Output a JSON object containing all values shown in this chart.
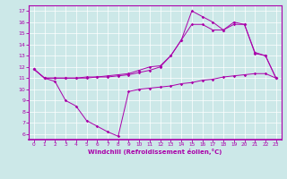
{
  "xlabel": "Windchill (Refroidissement éolien,°C)",
  "bg_color": "#cce8e8",
  "line_color": "#aa00aa",
  "xlim": [
    -0.5,
    23.5
  ],
  "ylim": [
    5.5,
    17.5
  ],
  "xticks": [
    0,
    1,
    2,
    3,
    4,
    5,
    6,
    7,
    8,
    9,
    10,
    11,
    12,
    13,
    14,
    15,
    16,
    17,
    18,
    19,
    20,
    21,
    22,
    23
  ],
  "yticks": [
    6,
    7,
    8,
    9,
    10,
    11,
    12,
    13,
    14,
    15,
    16,
    17
  ],
  "series1_x": [
    0,
    1,
    2,
    3,
    4,
    5,
    6,
    7,
    8,
    9,
    10,
    11,
    12,
    13,
    14,
    15,
    16,
    17,
    18,
    19,
    20,
    21,
    22,
    23
  ],
  "series1_y": [
    11.8,
    11.0,
    10.7,
    9.0,
    8.5,
    7.2,
    6.7,
    6.2,
    5.8,
    9.8,
    10.0,
    10.1,
    10.2,
    10.3,
    10.5,
    10.6,
    10.8,
    10.9,
    11.1,
    11.2,
    11.3,
    11.4,
    11.4,
    11.0
  ],
  "series2_x": [
    0,
    1,
    2,
    3,
    4,
    5,
    6,
    7,
    8,
    9,
    10,
    11,
    12,
    13,
    14,
    15,
    16,
    17,
    18,
    19,
    20,
    21,
    22,
    23
  ],
  "series2_y": [
    11.8,
    11.0,
    11.0,
    11.0,
    11.0,
    11.0,
    11.1,
    11.1,
    11.2,
    11.3,
    11.5,
    11.7,
    12.0,
    13.0,
    14.4,
    15.8,
    15.8,
    15.3,
    15.3,
    15.8,
    15.8,
    13.2,
    13.0,
    11.0
  ],
  "series3_x": [
    0,
    1,
    2,
    3,
    4,
    5,
    6,
    7,
    8,
    9,
    10,
    11,
    12,
    13,
    14,
    15,
    16,
    17,
    18,
    19,
    20,
    21,
    22,
    23
  ],
  "series3_y": [
    11.8,
    11.0,
    11.0,
    11.0,
    11.0,
    11.1,
    11.1,
    11.2,
    11.3,
    11.4,
    11.7,
    12.0,
    12.1,
    13.0,
    14.4,
    17.0,
    16.5,
    16.0,
    15.3,
    16.0,
    15.8,
    13.3,
    13.0,
    11.0
  ]
}
